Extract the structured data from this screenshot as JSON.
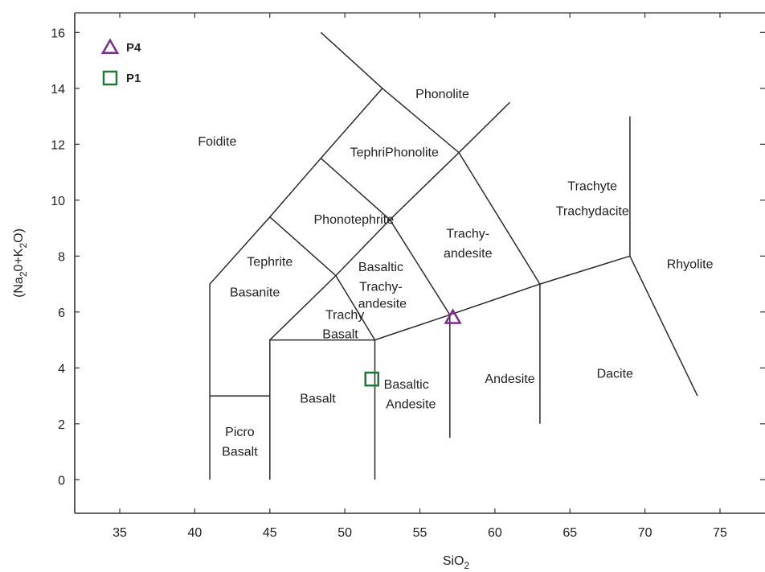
{
  "chart_data": {
    "type": "scatter",
    "title": "",
    "xlabel": {
      "base": "SiO",
      "sub": "2"
    },
    "ylabel": {
      "parts": [
        [
          "(Na",
          ""
        ],
        [
          "2",
          "sub"
        ],
        [
          "0+K",
          ""
        ],
        [
          "2",
          "sub"
        ],
        [
          "O)",
          ""
        ]
      ]
    },
    "xlim": [
      32,
      78
    ],
    "ylim": [
      -1.2,
      16.7
    ],
    "xticks": [
      35,
      40,
      45,
      50,
      55,
      60,
      65,
      70,
      75
    ],
    "yticks": [
      0,
      2,
      4,
      6,
      8,
      10,
      12,
      14,
      16
    ],
    "grid": false,
    "legend_position": "top-left",
    "series": [
      {
        "name": "P4",
        "marker": "triangle",
        "color": "#7b2d8e",
        "points": [
          {
            "x": 57.2,
            "y": 5.8
          }
        ]
      },
      {
        "name": "P1",
        "marker": "square",
        "color": "#1f7a3a",
        "points": [
          {
            "x": 51.8,
            "y": 3.6
          }
        ]
      }
    ],
    "boundaries": [
      [
        [
          41,
          0
        ],
        [
          41,
          7
        ],
        [
          45,
          9.4
        ],
        [
          48.4,
          11.5
        ],
        [
          52.5,
          14
        ],
        [
          48.4,
          16
        ]
      ],
      [
        [
          41,
          3
        ],
        [
          45,
          3
        ]
      ],
      [
        [
          45,
          0
        ],
        [
          45,
          5
        ],
        [
          49.4,
          7.3
        ],
        [
          53,
          9.3
        ],
        [
          57.6,
          11.7
        ],
        [
          61,
          13.5
        ]
      ],
      [
        [
          45,
          5
        ],
        [
          52,
          5
        ],
        [
          57,
          5.9
        ],
        [
          63,
          7
        ],
        [
          69,
          8
        ]
      ],
      [
        [
          52,
          0
        ],
        [
          52,
          5
        ]
      ],
      [
        [
          57,
          1.5
        ],
        [
          57,
          5.9
        ]
      ],
      [
        [
          63,
          2
        ],
        [
          63,
          7
        ],
        [
          57.6,
          11.7
        ],
        [
          52.5,
          14
        ]
      ],
      [
        [
          69,
          13
        ],
        [
          69,
          8
        ],
        [
          73.5,
          3
        ]
      ],
      [
        [
          45,
          9.4
        ],
        [
          49.4,
          7.3
        ],
        [
          52,
          5
        ]
      ],
      [
        [
          48.4,
          11.5
        ],
        [
          53,
          9.3
        ],
        [
          57,
          5.9
        ]
      ]
    ],
    "field_labels": [
      {
        "text": "Foidite",
        "x": 41.5,
        "y": 12.1
      },
      {
        "text": "Phonolite",
        "x": 56.5,
        "y": 13.8
      },
      {
        "text": "TephriPhonolite",
        "x": 53.3,
        "y": 11.7
      },
      {
        "text": "Phonotephrite",
        "x": 50.6,
        "y": 9.3
      },
      {
        "text": "Tephrite",
        "x": 45,
        "y": 7.8
      },
      {
        "text": "Basanite",
        "x": 44,
        "y": 6.7
      },
      {
        "text": "Basaltic",
        "x": 52.4,
        "y": 7.6
      },
      {
        "text": "Trachy-",
        "x": 52.4,
        "y": 6.9
      },
      {
        "text": "andesite",
        "x": 52.5,
        "y": 6.3
      },
      {
        "text": "Trachy",
        "x": 50,
        "y": 5.9
      },
      {
        "text": "Basalt",
        "x": 49.7,
        "y": 5.2
      },
      {
        "text": "Trachy-",
        "x": 58.2,
        "y": 8.8
      },
      {
        "text": "andesite",
        "x": 58.2,
        "y": 8.1
      },
      {
        "text": "Trachyte",
        "x": 66.5,
        "y": 10.5
      },
      {
        "text": "Trachydacite",
        "x": 66.5,
        "y": 9.6
      },
      {
        "text": "Rhyolite",
        "x": 73,
        "y": 7.7
      },
      {
        "text": "Basalt",
        "x": 48.2,
        "y": 2.9
      },
      {
        "text": "Basaltic",
        "x": 54.1,
        "y": 3.4
      },
      {
        "text": "Andesite",
        "x": 54.4,
        "y": 2.7
      },
      {
        "text": "Andesite",
        "x": 61,
        "y": 3.6
      },
      {
        "text": "Dacite",
        "x": 68,
        "y": 3.8
      },
      {
        "text": "Picro",
        "x": 43,
        "y": 1.7
      },
      {
        "text": "Basalt",
        "x": 43,
        "y": 1
      }
    ]
  }
}
